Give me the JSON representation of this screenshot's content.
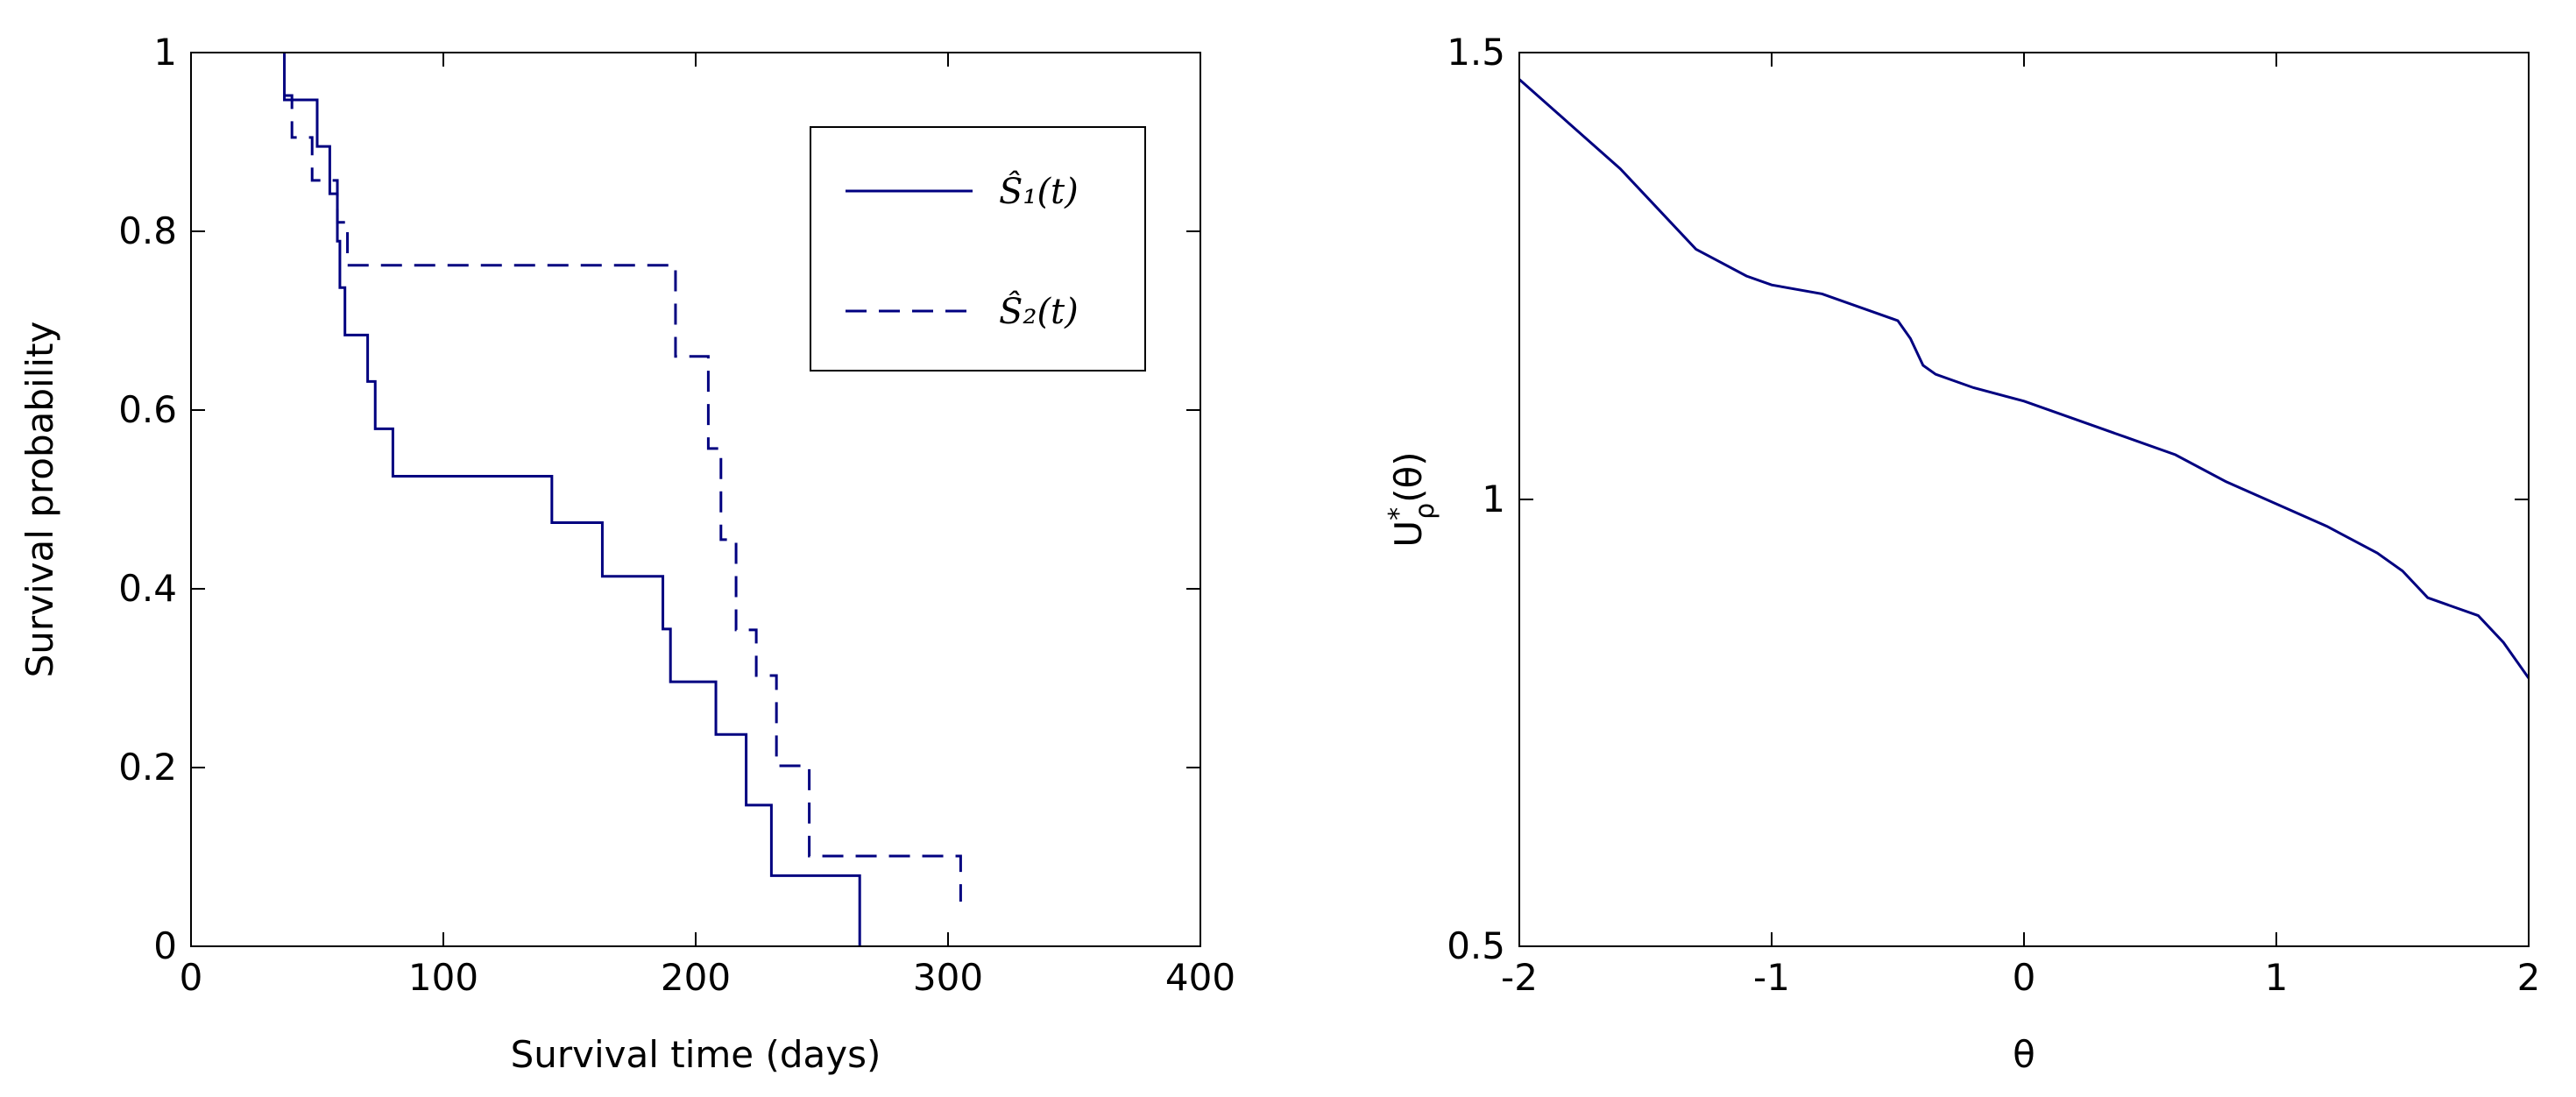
{
  "chart_data": [
    {
      "type": "line",
      "title": "",
      "xlabel": "Survival time (days)",
      "ylabel": "Survival probability",
      "xlim": [
        0,
        400
      ],
      "ylim": [
        0,
        1
      ],
      "xticks": [
        0,
        100,
        200,
        300,
        400
      ],
      "yticks": [
        0,
        0.2,
        0.4,
        0.6,
        0.8,
        1
      ],
      "xtick_labels": [
        "0",
        "100",
        "200",
        "300",
        "400"
      ],
      "ytick_labels": [
        "0",
        "0.2",
        "0.4",
        "0.6",
        "0.8",
        "1"
      ],
      "grid": false,
      "legend": {
        "placement": "top-right",
        "entries": [
          "Ŝ₁(t)",
          "Ŝ₂(t)"
        ]
      },
      "series": [
        {
          "name": "Ŝ₁(t)",
          "style": "solid",
          "step_x": [
            37,
            37,
            50,
            55,
            58,
            59,
            61,
            70,
            73,
            80,
            143,
            163,
            187,
            190,
            208,
            220,
            230,
            265,
            265
          ],
          "step_y": [
            1.0,
            0.947,
            0.895,
            0.842,
            0.789,
            0.737,
            0.684,
            0.632,
            0.579,
            0.526,
            0.474,
            0.414,
            0.355,
            0.296,
            0.237,
            0.158,
            0.079,
            0.079,
            0.0
          ]
        },
        {
          "name": "Ŝ₂(t)",
          "style": "dashed",
          "step_x": [
            37,
            40,
            48,
            58,
            62,
            66,
            192,
            205,
            210,
            216,
            224,
            232,
            245,
            305,
            305
          ],
          "step_y": [
            0.952,
            0.905,
            0.857,
            0.81,
            0.762,
            0.762,
            0.66,
            0.557,
            0.455,
            0.354,
            0.303,
            0.202,
            0.101,
            0.101,
            0.05
          ]
        }
      ]
    },
    {
      "type": "line",
      "title": "",
      "xlabel": "θ",
      "ylabel": "U*ρ(θ)",
      "xlim": [
        -2,
        2
      ],
      "ylim": [
        0.5,
        1.5
      ],
      "xticks": [
        -2,
        -1,
        0,
        1,
        2
      ],
      "yticks": [
        0.5,
        1,
        1.5
      ],
      "xtick_labels": [
        "-2",
        "-1",
        "0",
        "1",
        "2"
      ],
      "ytick_labels": [
        "0.5",
        "1",
        "1.5"
      ],
      "grid": false,
      "series": [
        {
          "x": [
            -2,
            -1.8,
            -1.6,
            -1.5,
            -1.4,
            -1.3,
            -1.2,
            -1.1,
            -1.0,
            -0.8,
            -0.6,
            -0.5,
            -0.45,
            -0.4,
            -0.35,
            -0.2,
            0,
            0.2,
            0.4,
            0.6,
            0.8,
            1.0,
            1.2,
            1.4,
            1.5,
            1.6,
            1.8,
            1.9,
            2.0
          ],
          "y": [
            1.47,
            1.42,
            1.37,
            1.34,
            1.31,
            1.28,
            1.265,
            1.25,
            1.24,
            1.23,
            1.21,
            1.2,
            1.18,
            1.15,
            1.14,
            1.125,
            1.11,
            1.09,
            1.07,
            1.05,
            1.02,
            0.995,
            0.97,
            0.94,
            0.92,
            0.89,
            0.87,
            0.84,
            0.8
          ]
        }
      ]
    }
  ]
}
